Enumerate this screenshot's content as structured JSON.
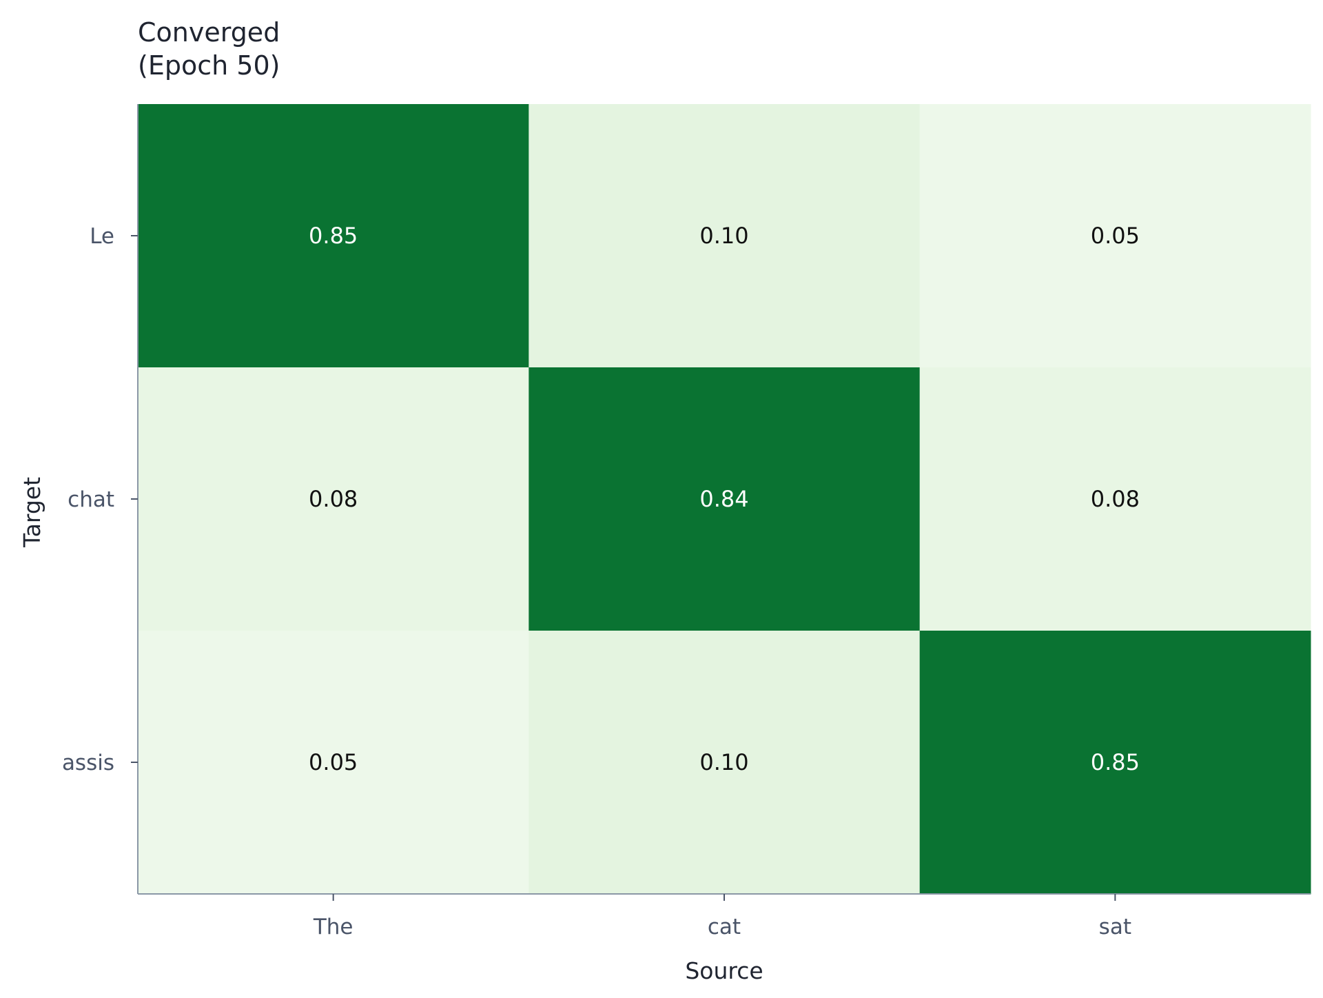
{
  "chart_data": {
    "type": "heatmap",
    "title_lines": [
      "Converged",
      "(Epoch 50)"
    ],
    "xlabel": "Source",
    "ylabel": "Target",
    "x_categories": [
      "The",
      "cat",
      "sat"
    ],
    "y_categories": [
      "Le",
      "chat",
      "assis"
    ],
    "values": [
      [
        0.85,
        0.1,
        0.05
      ],
      [
        0.08,
        0.84,
        0.08
      ],
      [
        0.05,
        0.1,
        0.85
      ]
    ],
    "value_format": "2 decimals",
    "colormap": "Greens",
    "colors": {
      "low": "#f7fcf5",
      "mid": "#c7e9c0",
      "high": "#0a7332",
      "label_dark": "#111111",
      "label_light": "#ffffff",
      "axis": "#8a97a6"
    },
    "grid": false,
    "legend": "none"
  }
}
